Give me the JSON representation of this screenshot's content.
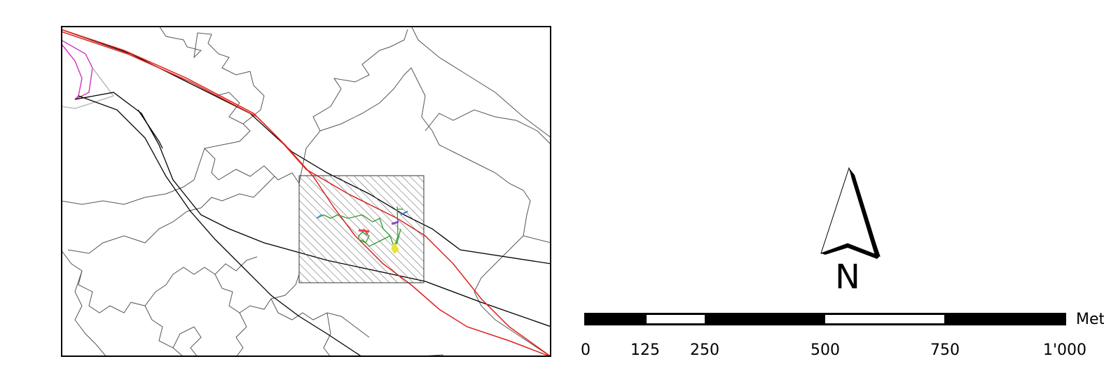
{
  "north_arrow": {
    "label": "N"
  },
  "scale_bar": {
    "unit_label": "Meters",
    "ticks": [
      "0",
      "125",
      "250",
      "500",
      "750",
      "1'000"
    ],
    "colors": {
      "filled": "#000000",
      "empty": "#ffffff"
    }
  },
  "map": {
    "colors": {
      "boundaries": "#555555",
      "railway": "#000000",
      "highway": "#e0201b",
      "district_line": "#d63bc4",
      "study_area_hatch": "#666666",
      "routes": "#2e9a2e"
    }
  }
}
